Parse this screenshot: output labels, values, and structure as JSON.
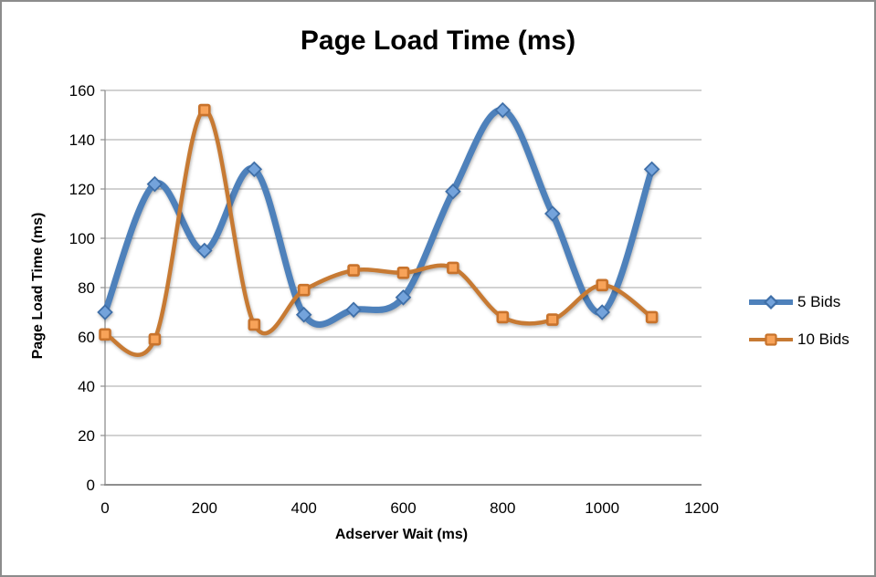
{
  "chart_data": {
    "type": "line",
    "title": "Page Load Time (ms)",
    "xlabel": "Adserver Wait (ms)",
    "ylabel": "Page Load Time (ms)",
    "x": [
      0,
      100,
      200,
      300,
      400,
      500,
      600,
      700,
      800,
      900,
      1000,
      1100
    ],
    "series": [
      {
        "name": "5 Bids",
        "marker": "diamond",
        "line_color": "#4E81BB",
        "marker_fill": "#74A3DB",
        "marker_stroke": "#3F6FA8",
        "line_width": 7,
        "values": [
          70,
          122,
          95,
          128,
          69,
          71,
          76,
          119,
          152,
          110,
          70,
          128
        ]
      },
      {
        "name": "10 Bids",
        "marker": "square",
        "line_color": "#C77A33",
        "marker_fill": "#F8A359",
        "marker_stroke": "#C8732C",
        "line_width": 4.5,
        "values": [
          61,
          59,
          152,
          65,
          79,
          87,
          86,
          88,
          68,
          67,
          81,
          68
        ]
      }
    ],
    "xlim": [
      0,
      1200
    ],
    "ylim": [
      0,
      160
    ],
    "xticks": [
      0,
      200,
      400,
      600,
      800,
      1000,
      1200
    ],
    "yticks": [
      0,
      20,
      40,
      60,
      80,
      100,
      120,
      140,
      160
    ],
    "grid": true,
    "smooth_lines": true,
    "legend_position": "right",
    "colors": {
      "gridline": "#A6A6A6",
      "axis": "#8E8E8E",
      "text": "#000000",
      "frame_border": "#8C8C8C",
      "background": "#FFFFFF"
    }
  }
}
